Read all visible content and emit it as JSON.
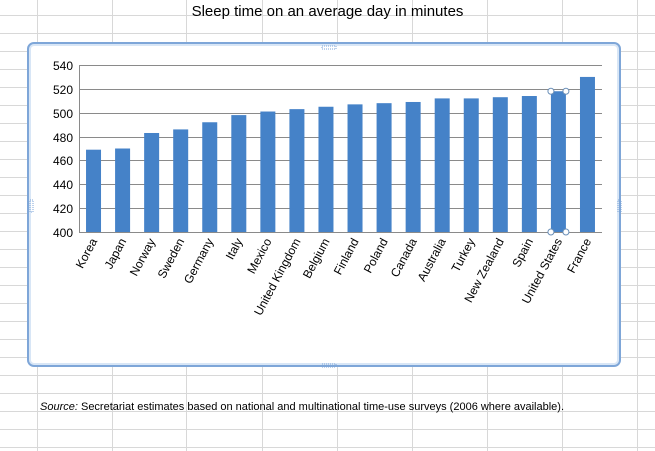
{
  "chart_title": "Sleep time on an average day in minutes",
  "source_label": "Source:",
  "source_text": " Secretariat estimates based on national and multinational time-use surveys (2006 where available).",
  "colors": {
    "bar": "#4582c8",
    "grid": "#8a8a8a",
    "frame": "#7ea6d8",
    "sheet_grid": "#d8d8d8"
  },
  "chart_data": {
    "type": "bar",
    "title": "Sleep time on an average day in minutes",
    "xlabel": "",
    "ylabel": "",
    "ylim": [
      400,
      540
    ],
    "yticks": [
      400,
      420,
      440,
      460,
      480,
      500,
      520,
      540
    ],
    "grid": true,
    "categories": [
      "Korea",
      "Japan",
      "Norway",
      "Sweden",
      "Germany",
      "Italy",
      "Mexico",
      "United Kingdom",
      "Belgium",
      "Finland",
      "Poland",
      "Canada",
      "Australia",
      "Turkey",
      "New Zealand",
      "Spain",
      "United States",
      "France"
    ],
    "values": [
      469,
      470,
      483,
      486,
      492,
      498,
      501,
      503,
      505,
      507,
      508,
      509,
      512,
      512,
      513,
      514,
      518,
      530
    ],
    "selected_category": "United States"
  }
}
